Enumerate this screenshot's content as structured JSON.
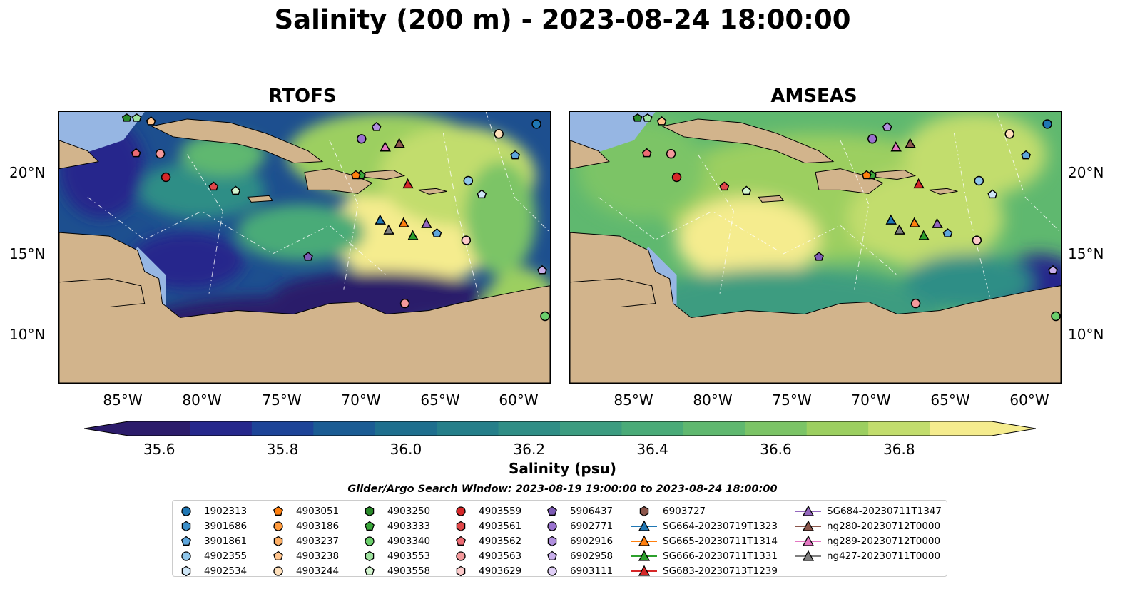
{
  "title": "Salinity (200 m) - 2023-08-24 18:00:00",
  "panels": [
    {
      "title": "RTOFS"
    },
    {
      "title": "AMSEAS"
    }
  ],
  "lat_labels": [
    "20°N",
    "15°N",
    "10°N"
  ],
  "lon_labels": [
    "85°W",
    "80°W",
    "75°W",
    "70°W",
    "65°W",
    "60°W"
  ],
  "colorbar": {
    "label": "Salinity (psu)",
    "ticks": [
      "35.6",
      "35.8",
      "36.0",
      "36.2",
      "36.4",
      "36.6",
      "36.8"
    ],
    "range": [
      35.55,
      36.95
    ],
    "colors": [
      "#2c1c6b",
      "#26288c",
      "#1d4498",
      "#1b5c94",
      "#1e6f8e",
      "#257f8a",
      "#2f8e86",
      "#3c9c80",
      "#4aab78",
      "#5fb86f",
      "#7bc466",
      "#9ccf60",
      "#c2dd6d",
      "#f5ec8e"
    ]
  },
  "search_window": "Glider/Argo Search Window: 2023-08-19 19:00:00 to 2023-08-24 18:00:00",
  "legend": {
    "col1": [
      {
        "label": "1902313",
        "marker": "circle",
        "color": "#1f77b4"
      },
      {
        "label": "3901686",
        "marker": "hexagon",
        "color": "#3c8fc9"
      },
      {
        "label": "3901861",
        "marker": "pentagon",
        "color": "#5ea6dc"
      },
      {
        "label": "4902355",
        "marker": "circle",
        "color": "#8fc6ea"
      },
      {
        "label": "4902534",
        "marker": "hexagon",
        "color": "#cfe6f7"
      }
    ],
    "col2": [
      {
        "label": "4903051",
        "marker": "pentagon",
        "color": "#ff7f0e"
      },
      {
        "label": "4903186",
        "marker": "circle",
        "color": "#ff9a3c"
      },
      {
        "label": "4903237",
        "marker": "hexagon",
        "color": "#ffb066"
      },
      {
        "label": "4903238",
        "marker": "pentagon",
        "color": "#ffc48d"
      },
      {
        "label": "4903244",
        "marker": "circle",
        "color": "#ffe0bb"
      }
    ],
    "col3": [
      {
        "label": "4903250",
        "marker": "hexagon",
        "color": "#2a8a2a"
      },
      {
        "label": "4903333",
        "marker": "pentagon",
        "color": "#3aa83a"
      },
      {
        "label": "4903340",
        "marker": "circle",
        "color": "#6ccf6c"
      },
      {
        "label": "4903553",
        "marker": "hexagon",
        "color": "#9fe39f"
      },
      {
        "label": "4903558",
        "marker": "pentagon",
        "color": "#d3f5cf"
      }
    ],
    "col4": [
      {
        "label": "4903559",
        "marker": "circle",
        "color": "#d62728"
      },
      {
        "label": "4903561",
        "marker": "hexagon",
        "color": "#e0474a"
      },
      {
        "label": "4903562",
        "marker": "pentagon",
        "color": "#ec6b73"
      },
      {
        "label": "4903563",
        "marker": "circle",
        "color": "#f4999c"
      },
      {
        "label": "4903629",
        "marker": "hexagon",
        "color": "#fbcaca"
      }
    ],
    "col5": [
      {
        "label": "5906437",
        "marker": "pentagon",
        "color": "#7d5bb5"
      },
      {
        "label": "6902771",
        "marker": "circle",
        "color": "#9a72cf"
      },
      {
        "label": "6902916",
        "marker": "hexagon",
        "color": "#b08fde"
      },
      {
        "label": "6902958",
        "marker": "pentagon",
        "color": "#c8aeeb"
      },
      {
        "label": "6903111",
        "marker": "circle",
        "color": "#e0cff7"
      }
    ],
    "col6": [
      {
        "label": "6903727",
        "marker": "hexagon",
        "color": "#8c564b",
        "line": false
      },
      {
        "label": "SG664-20230719T1323",
        "marker": "triangle",
        "color": "#1f77b4",
        "line": true
      },
      {
        "label": "SG665-20230711T1314",
        "marker": "triangle",
        "color": "#ff7f0e",
        "line": true
      },
      {
        "label": "SG666-20230711T1331",
        "marker": "triangle",
        "color": "#2ca02c",
        "line": true
      },
      {
        "label": "SG683-20230713T1239",
        "marker": "triangle",
        "color": "#d62728",
        "line": true
      }
    ],
    "col7": [
      {
        "label": "SG684-20230711T1347",
        "marker": "triangle",
        "color": "#9467bd",
        "line": true
      },
      {
        "label": "ng280-20230712T0000",
        "marker": "triangle",
        "color": "#8c564b",
        "line": true
      },
      {
        "label": "ng289-20230712T0000",
        "marker": "triangle",
        "color": "#e377c2",
        "line": true
      },
      {
        "label": "ng427-20230711T0000",
        "marker": "triangle",
        "color": "#7f7f7f",
        "line": true
      }
    ]
  },
  "map_colors": {
    "land": "#d2b48c",
    "shelf": "#96b6e3"
  }
}
